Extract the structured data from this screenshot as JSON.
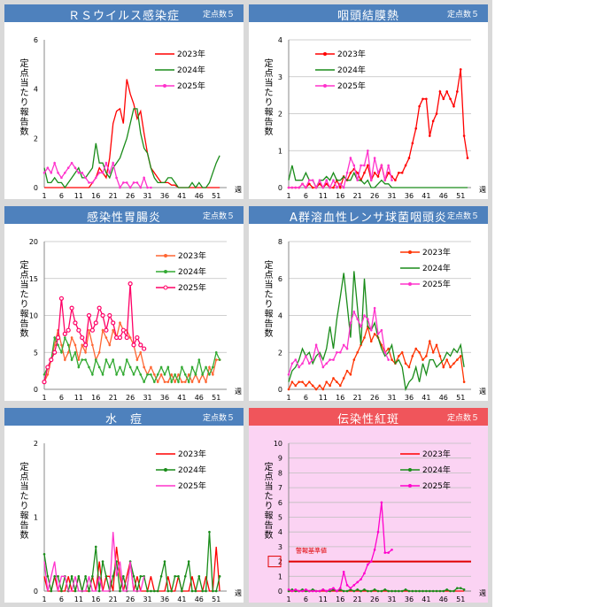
{
  "panels": [
    {
      "title": "ＲＳウイルス感染症",
      "points": "定点数５",
      "ylabel": "定点当たり報告数",
      "xunit": "週",
      "ymax": 6,
      "ystep": 2,
      "yticks": [
        "0",
        "2",
        "4",
        "6"
      ],
      "grid": false,
      "bg": "#ffffff",
      "xticks": [
        "1",
        "6",
        "11",
        "16",
        "21",
        "26",
        "31",
        "36",
        "41",
        "46",
        "51"
      ],
      "series": [
        {
          "name": "2023年",
          "color": "#ff0000",
          "marker": "none",
          "values": [
            0,
            0,
            0,
            0,
            0,
            0,
            0,
            0,
            0,
            0,
            0,
            0,
            0,
            0,
            0.2,
            0.4,
            0.8,
            0.6,
            0.4,
            1.2,
            2.6,
            3.1,
            3.2,
            2.6,
            4.4,
            3.8,
            3.4,
            2.8,
            3.1,
            2.2,
            1.4,
            0.8,
            0.6,
            0.4,
            0.2,
            0.2,
            0.2,
            0.1,
            0.1,
            0,
            0,
            0,
            0,
            0,
            0,
            0,
            0,
            0,
            0,
            0,
            0,
            0
          ]
        },
        {
          "name": "2024年",
          "color": "#1a8c1a",
          "marker": "none",
          "values": [
            0.8,
            0.2,
            0.2,
            0.4,
            0.2,
            0.2,
            0,
            0.2,
            0.4,
            0.6,
            0.8,
            0.4,
            0.4,
            0.6,
            0.8,
            1.8,
            1,
            1,
            0.6,
            0.4,
            0.8,
            1,
            1.2,
            1.6,
            2,
            2.6,
            3.2,
            3.2,
            2.2,
            1.6,
            1.4,
            0.8,
            0.4,
            0.2,
            0.2,
            0.2,
            0.4,
            0.4,
            0.2,
            0,
            0,
            0,
            0,
            0.2,
            0,
            0.2,
            0,
            0,
            0.2,
            0.6,
            1,
            1.3
          ]
        },
        {
          "name": "2025年",
          "color": "#ff33cc",
          "marker": "dot",
          "values": [
            0.6,
            0.8,
            0.6,
            1,
            0.6,
            0.4,
            0.6,
            0.8,
            1,
            0.8,
            0.6,
            0.6,
            0.4,
            0.2,
            0.2,
            0.4,
            0.6,
            0.6,
            1,
            0.6,
            1,
            0.4,
            0,
            0.2,
            0.2,
            0,
            0.2,
            0.2,
            0,
            0.4,
            0,
            0
          ]
        }
      ]
    },
    {
      "title": "咽頭結膜熱",
      "points": "定点数５",
      "ylabel": "定点当たり報告数",
      "xunit": "週",
      "ymax": 4,
      "ystep": 1,
      "yticks": [
        "0",
        "1",
        "2",
        "3",
        "4"
      ],
      "grid": true,
      "bg": "#ffffff",
      "xticks": [
        "1",
        "6",
        "11",
        "16",
        "21",
        "26",
        "31",
        "36",
        "41",
        "46",
        "51"
      ],
      "series": [
        {
          "name": "2023年",
          "color": "#ff0000",
          "marker": "dot",
          "values": [
            0,
            0,
            0,
            0,
            0.1,
            0,
            0.1,
            0,
            0,
            0.1,
            0,
            0.1,
            0,
            0,
            0.2,
            0,
            0.3,
            0.2,
            0.4,
            0.5,
            0.4,
            0.2,
            0.4,
            0.6,
            0.2,
            0.4,
            0.3,
            0.6,
            0.2,
            0.4,
            0.3,
            0.2,
            0.4,
            0.4,
            0.6,
            0.8,
            1.2,
            1.6,
            2.2,
            2.4,
            2.4,
            1.4,
            1.8,
            2,
            2.6,
            2.4,
            2.6,
            2.4,
            2.2,
            2.6,
            3.2,
            1.4,
            0.8
          ]
        },
        {
          "name": "2024年",
          "color": "#1a8c1a",
          "marker": "none",
          "values": [
            0.2,
            0.6,
            0.2,
            0.2,
            0.2,
            0.4,
            0.2,
            0.2,
            0,
            0.2,
            0.2,
            0.3,
            0.2,
            0.4,
            0.2,
            0.2,
            0.3,
            0.2,
            0.2,
            0.4,
            0.2,
            0.2,
            0.1,
            0.2,
            0,
            0,
            0.1,
            0.2,
            0.1,
            0.1,
            0,
            0,
            0,
            0,
            0,
            0,
            0,
            0,
            0,
            0,
            0,
            0,
            0,
            0,
            0,
            0,
            0,
            0,
            0,
            0,
            0,
            0,
            0
          ]
        },
        {
          "name": "2025年",
          "color": "#ff33cc",
          "marker": "dot",
          "values": [
            0,
            0,
            0,
            0,
            0.1,
            0,
            0.2,
            0.2,
            0,
            0.2,
            0,
            0.2,
            0,
            0.2,
            0,
            0.1,
            0,
            0.4,
            0.8,
            0.6,
            0.2,
            0.6,
            0.6,
            1,
            0.2,
            0.8,
            0.4,
            0.6,
            0.2,
            0.6,
            0.2
          ]
        }
      ]
    },
    {
      "title": "感染性胃腸炎",
      "points": "定点数５",
      "ylabel": "定点当たり報告数",
      "xunit": "週",
      "ymax": 20,
      "ystep": 5,
      "yticks": [
        "0",
        "5",
        "10",
        "15",
        "20"
      ],
      "grid": true,
      "bg": "#ffffff",
      "xticks": [
        "1",
        "6",
        "11",
        "16",
        "21",
        "26",
        "31",
        "36",
        "41",
        "46",
        "51"
      ],
      "series": [
        {
          "name": "2023年",
          "color": "#ff6633",
          "marker": "dot",
          "values": [
            1,
            2,
            4,
            6,
            8,
            6,
            4,
            5,
            7,
            6,
            4,
            6,
            5,
            8,
            6,
            4,
            5,
            8,
            7,
            6,
            8,
            7,
            9,
            8,
            8,
            7,
            6,
            4,
            5,
            3,
            2,
            3,
            2,
            1,
            2,
            1,
            1,
            2,
            1,
            2,
            1,
            1,
            2,
            1,
            2,
            1,
            2,
            1,
            3,
            2,
            4,
            4
          ]
        },
        {
          "name": "2024年",
          "color": "#33aa33",
          "marker": "dot",
          "values": [
            2,
            3,
            4,
            7,
            6,
            5,
            7,
            6,
            4,
            5,
            3,
            4,
            4,
            3,
            2,
            4,
            3,
            2,
            4,
            3,
            4,
            2,
            3,
            2,
            4,
            3,
            2,
            3,
            2,
            1,
            2,
            2,
            1,
            2,
            3,
            2,
            3,
            1,
            2,
            1,
            3,
            2,
            1,
            3,
            2,
            4,
            2,
            3,
            2,
            3,
            5,
            4
          ]
        },
        {
          "name": "2025年",
          "color": "#ff0066",
          "marker": "circle",
          "values": [
            1,
            3,
            4,
            5,
            7,
            12.3,
            7.5,
            8,
            11,
            9,
            8,
            7,
            6,
            10,
            8,
            9,
            11,
            10,
            8,
            10,
            9,
            7,
            7,
            8,
            7,
            14.3,
            6,
            7,
            6,
            5.5
          ]
        }
      ]
    },
    {
      "title": "A群溶血性レンサ球菌咽頭炎",
      "points": "定点数５",
      "ylabel": "定点当たり報告数",
      "xunit": "週",
      "ymax": 8,
      "ystep": 2,
      "yticks": [
        "0",
        "2",
        "4",
        "6",
        "8"
      ],
      "grid": true,
      "bg": "#ffffff",
      "xticks": [
        "1",
        "6",
        "11",
        "16",
        "21",
        "26",
        "31",
        "36",
        "41",
        "46",
        "51"
      ],
      "series": [
        {
          "name": "2023年",
          "color": "#ff3300",
          "marker": "dot",
          "values": [
            0,
            0.4,
            0.2,
            0.4,
            0.4,
            0.2,
            0.4,
            0.2,
            0,
            0.2,
            0,
            0.4,
            0.2,
            0.6,
            0.4,
            0.2,
            0.6,
            1,
            0.8,
            1.6,
            2,
            2.4,
            2.8,
            3.4,
            2.6,
            3,
            2.8,
            2.4,
            2,
            2.2,
            1.6,
            1.4,
            1.8,
            2,
            1.4,
            1.2,
            1.8,
            2.2,
            2,
            1.6,
            1.8,
            2.6,
            2,
            2.4,
            1.8,
            1.2,
            1.6,
            1.2,
            1.4,
            1.6,
            1.8,
            0.4
          ]
        },
        {
          "name": "2024年",
          "color": "#1a8c1a",
          "marker": "none",
          "values": [
            0.4,
            1,
            1.2,
            1.6,
            2.2,
            1.8,
            2,
            1.4,
            1.8,
            2,
            1.6,
            2.2,
            3.4,
            2.2,
            3.8,
            5,
            6.3,
            4.6,
            2.8,
            6.4,
            4.4,
            2.4,
            6,
            3.4,
            3.2,
            3.6,
            2.8,
            2.2,
            1.8,
            2,
            2.4,
            1.4,
            1.6,
            1.2,
            0,
            0.4,
            0.6,
            1.2,
            0.4,
            1.4,
            0.8,
            1.6,
            1.6,
            1.2,
            1.4,
            1.6,
            2,
            1.8,
            2.2,
            2,
            2.4,
            1.2
          ]
        },
        {
          "name": "2025年",
          "color": "#ff33cc",
          "marker": "dot",
          "values": [
            0.8,
            1.4,
            1.6,
            1.2,
            1.4,
            1.8,
            1.4,
            1.6,
            2.4,
            1.8,
            1.2,
            1.4,
            1.6,
            1.6,
            2,
            2,
            2.4,
            2.2,
            3.6,
            4.2,
            3.8,
            3.4,
            4,
            3.8,
            3.2,
            4.4,
            3,
            3.2,
            2,
            1.6
          ]
        }
      ]
    },
    {
      "title": "水　痘",
      "points": "定点数５",
      "ylabel": "定点当たり報告数",
      "xunit": "週",
      "ymax": 2,
      "ystep": 1,
      "yticks": [
        "0",
        "1",
        "2"
      ],
      "grid": false,
      "bg": "#ffffff",
      "xticks": [
        "1",
        "6",
        "11",
        "16",
        "21",
        "26",
        "31",
        "36",
        "41",
        "46",
        "51"
      ],
      "series": [
        {
          "name": "2023年",
          "color": "#ff0000",
          "marker": "none",
          "values": [
            0.2,
            0,
            0,
            0.2,
            0,
            0,
            0,
            0.2,
            0,
            0,
            0.2,
            0,
            0,
            0,
            0.2,
            0,
            0.4,
            0,
            0.2,
            0.2,
            0,
            0.6,
            0.2,
            0,
            0.2,
            0.4,
            0,
            0.2,
            0,
            0,
            0,
            0.2,
            0,
            0,
            0,
            0,
            0.2,
            0,
            0,
            0.2,
            0,
            0,
            0,
            0.2,
            0,
            0,
            0,
            0.2,
            0,
            0,
            0.6,
            0
          ]
        },
        {
          "name": "2024年",
          "color": "#1a8c1a",
          "marker": "dot",
          "values": [
            0.5,
            0.2,
            0,
            0.2,
            0.2,
            0,
            0.2,
            0,
            0.2,
            0,
            0.2,
            0,
            0.2,
            0,
            0.2,
            0.6,
            0,
            0.4,
            0.2,
            0,
            0.2,
            0.4,
            0,
            0.2,
            0,
            0.4,
            0.2,
            0,
            0.2,
            0.2,
            0,
            0,
            0,
            0,
            0.2,
            0.4,
            0,
            0,
            0.2,
            0.2,
            0,
            0.2,
            0.4,
            0,
            0,
            0.2,
            0,
            0,
            0.8,
            0,
            0,
            0.2
          ]
        },
        {
          "name": "2025年",
          "color": "#ff33cc",
          "marker": "none",
          "values": [
            0.4,
            0,
            0.2,
            0.4,
            0,
            0.2,
            0.2,
            0,
            0,
            0.2,
            0,
            0,
            0,
            0.2,
            0,
            0,
            0.2,
            0,
            0,
            0,
            0.8,
            0.2,
            0.4,
            0,
            0,
            0.4,
            0,
            0,
            0,
            0.2
          ]
        }
      ]
    },
    {
      "title": "伝染性紅斑",
      "points": "定点数５",
      "ylabel": "定点当たり報告数",
      "xunit": "週",
      "ymax": 10,
      "ystep": 1,
      "yticks": [
        "0",
        "1",
        "2",
        "3",
        "4",
        "5",
        "6",
        "7",
        "8",
        "9",
        "10"
      ],
      "grid": true,
      "bg": "#fbd3f3",
      "xticks": [
        "1",
        "6",
        "11",
        "16",
        "21",
        "26",
        "31",
        "36",
        "41",
        "46",
        "51"
      ],
      "alert_label": "警報基準値",
      "alert_value": 2,
      "series": [
        {
          "name": "2023年",
          "color": "#ff0000",
          "marker": "none",
          "values": [
            0,
            0,
            0,
            0,
            0,
            0,
            0,
            0,
            0,
            0,
            0,
            0,
            0,
            0,
            0,
            0,
            0,
            0,
            0,
            0,
            0,
            0,
            0,
            0,
            0,
            0,
            0,
            0,
            0,
            0,
            0,
            0,
            0,
            0,
            0,
            0,
            0,
            0,
            0,
            0,
            0,
            0,
            0,
            0,
            0,
            0,
            0,
            0,
            0,
            0,
            0,
            0
          ]
        },
        {
          "name": "2024年",
          "color": "#1a8c1a",
          "marker": "dot",
          "values": [
            0,
            0.1,
            0,
            0,
            0.1,
            0,
            0,
            0.1,
            0,
            0,
            0.1,
            0,
            0,
            0.1,
            0,
            0.1,
            0,
            0,
            0.1,
            0,
            0.1,
            0,
            0.1,
            0,
            0,
            0.1,
            0,
            0,
            0.1,
            0,
            0,
            0,
            0,
            0,
            0.1,
            0,
            0,
            0,
            0,
            0,
            0,
            0,
            0,
            0,
            0,
            0,
            0.1,
            0,
            0,
            0.2,
            0.2,
            0.1
          ]
        },
        {
          "name": "2025年",
          "color": "#ff00cc",
          "marker": "dot",
          "values": [
            0.1,
            0,
            0.1,
            0,
            0,
            0.1,
            0,
            0,
            0,
            0,
            0.1,
            0,
            0.1,
            0.2,
            0,
            0.2,
            1.3,
            0.4,
            0.2,
            0.4,
            0.6,
            0.8,
            1.2,
            1.8,
            2,
            2.8,
            4,
            6,
            2.6,
            2.6,
            2.8
          ]
        }
      ]
    }
  ]
}
